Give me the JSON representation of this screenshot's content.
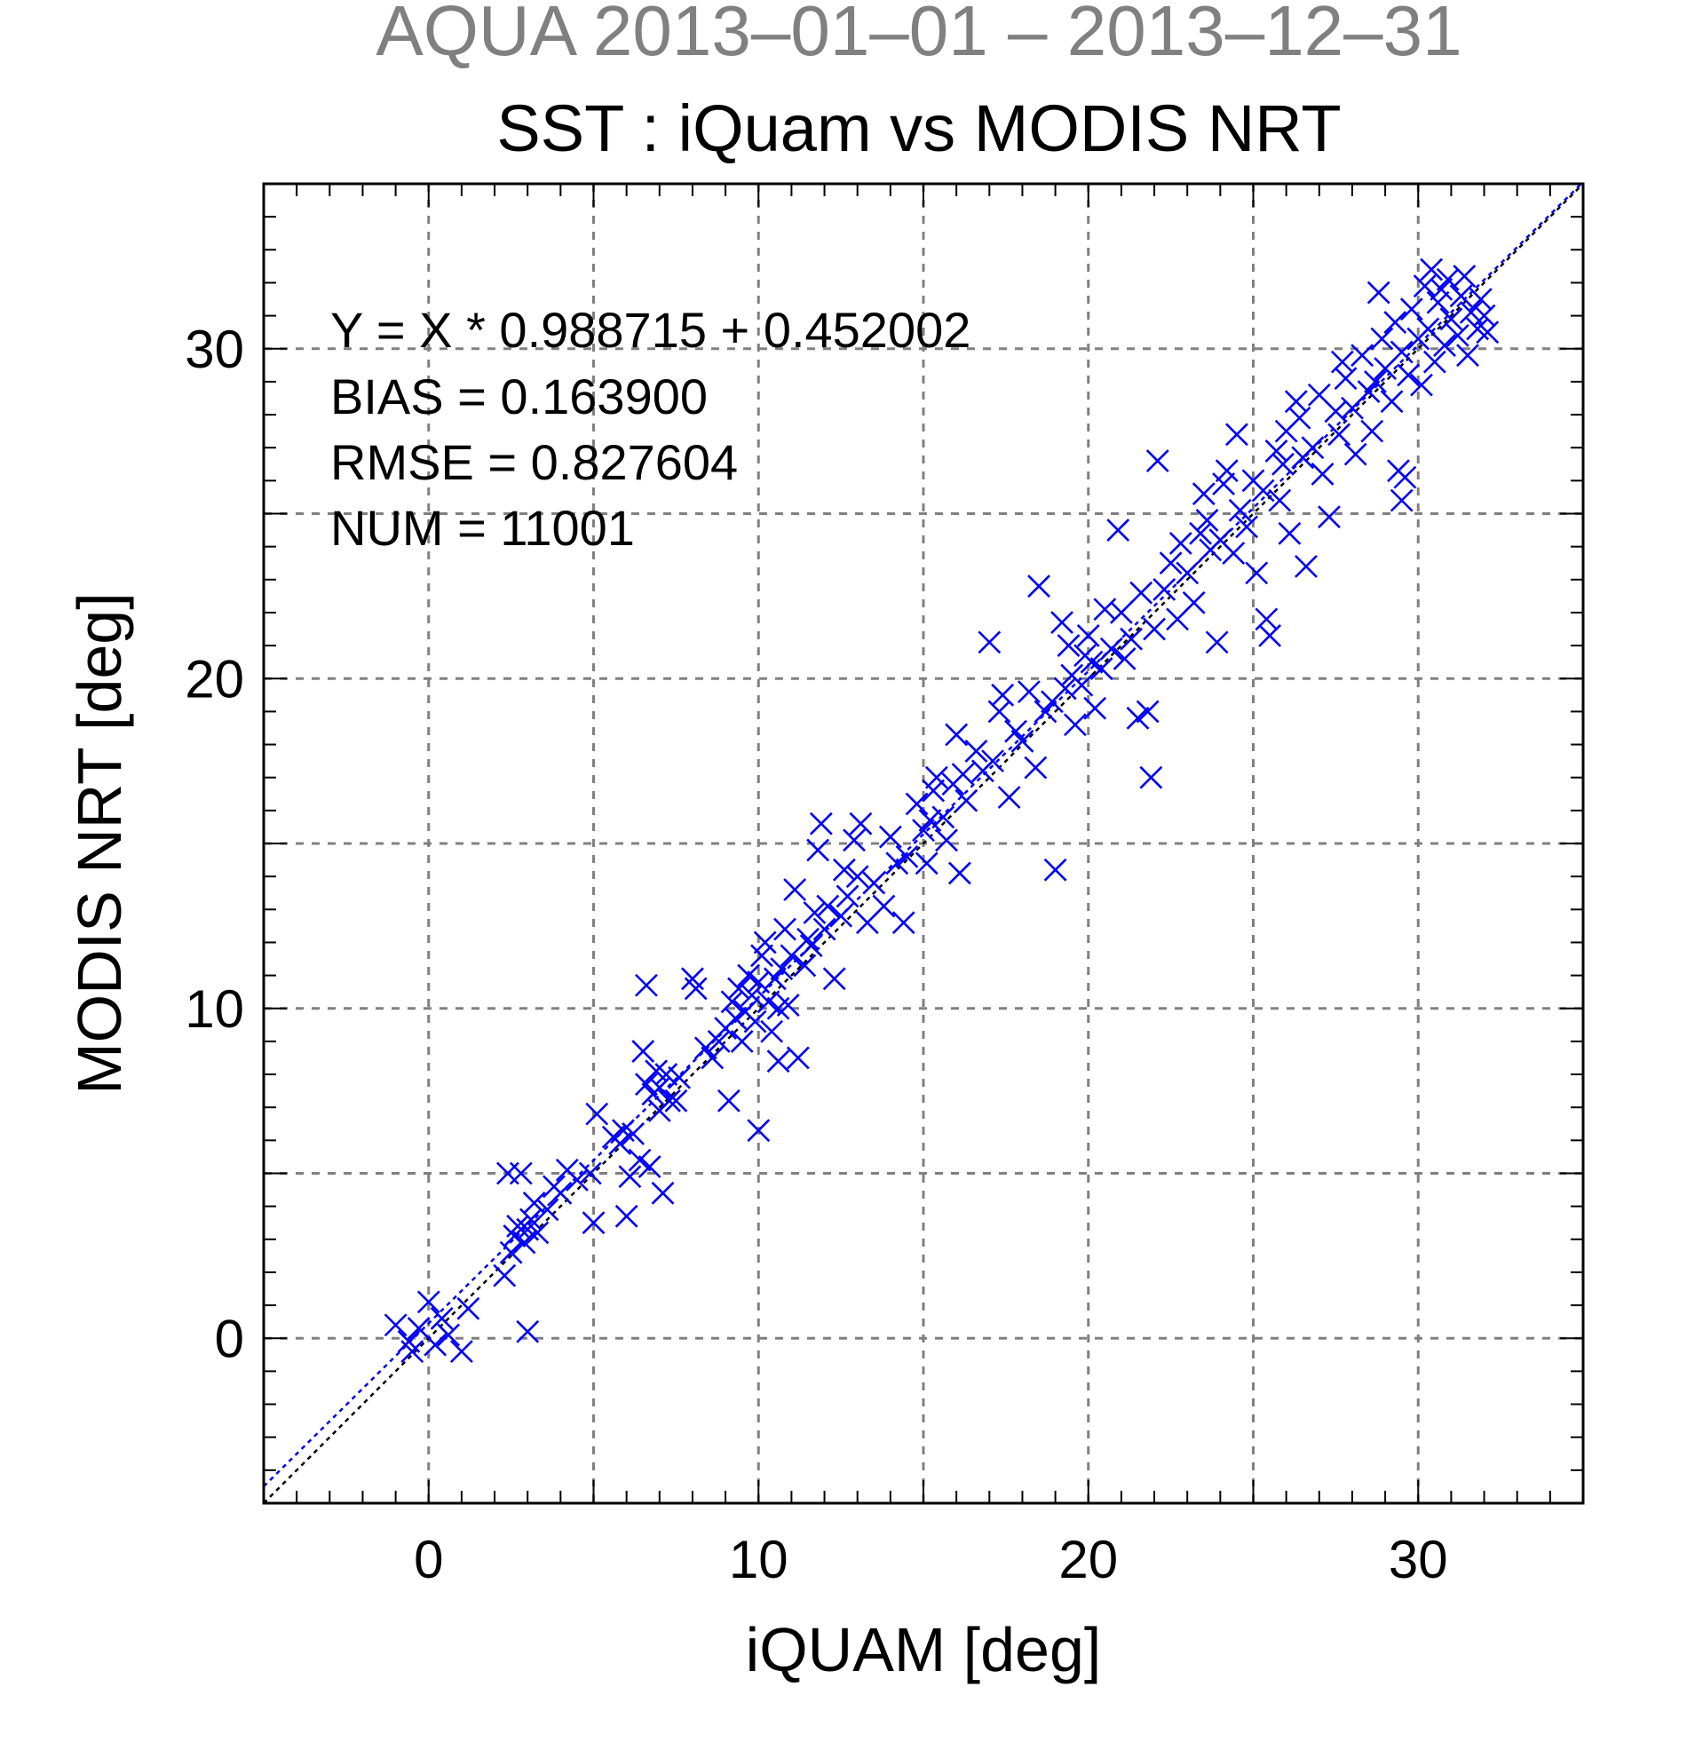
{
  "chart_data": {
    "type": "scatter",
    "title": "AQUA  2013–01–01 – 2013–12–31",
    "subtitle": "SST : iQuam vs MODIS NRT",
    "xlabel": "iQUAM [deg]",
    "ylabel": "MODIS NRT [deg]",
    "xlim": [
      -5,
      35
    ],
    "ylim": [
      -5,
      35
    ],
    "xticks": [
      0,
      10,
      20,
      30
    ],
    "yticks": [
      0,
      10,
      20,
      30
    ],
    "grid": true,
    "grid_step": 5,
    "marker": "x",
    "colors": {
      "points": "#0000ff",
      "fit_line": "#0000ff",
      "identity_line": "#000000",
      "title": "#808080",
      "grid": "#808080"
    },
    "fit": {
      "slope": 0.988715,
      "intercept": 0.452002
    },
    "stats": [
      "Y = X * 0.988715 + 0.452002",
      "BIAS = 0.163900",
      "RMSE = 0.827604",
      "NUM = 11001"
    ],
    "series": [
      {
        "points": [
          [
            -1.0,
            0.4
          ],
          [
            -0.6,
            -0.1
          ],
          [
            -0.3,
            0.3
          ],
          [
            0.0,
            1.1
          ],
          [
            0.2,
            -0.2
          ],
          [
            0.6,
            0.1
          ],
          [
            1.2,
            0.9
          ],
          [
            1.0,
            -0.4
          ],
          [
            -0.5,
            -0.4
          ],
          [
            0.4,
            0.6
          ],
          [
            2.4,
            5.0
          ],
          [
            2.8,
            5.0
          ],
          [
            2.6,
            3.1
          ],
          [
            3.0,
            3.3
          ],
          [
            2.5,
            2.6
          ],
          [
            3.2,
            4.1
          ],
          [
            2.3,
            1.9
          ],
          [
            2.9,
            2.9
          ],
          [
            3.1,
            3.6
          ],
          [
            3.3,
            3.2
          ],
          [
            2.7,
            3.4
          ],
          [
            3.0,
            0.2
          ],
          [
            3.6,
            3.9
          ],
          [
            3.8,
            4.6
          ],
          [
            4.2,
            5.1
          ],
          [
            4.5,
            4.8
          ],
          [
            4.9,
            5.0
          ],
          [
            4.0,
            4.4
          ],
          [
            5.0,
            3.5
          ],
          [
            5.1,
            6.8
          ],
          [
            5.6,
            6.1
          ],
          [
            5.9,
            6.3
          ],
          [
            6.1,
            4.9
          ],
          [
            5.8,
            5.9
          ],
          [
            6.2,
            6.2
          ],
          [
            6.4,
            5.4
          ],
          [
            6.6,
            7.7
          ],
          [
            6.8,
            7.4
          ],
          [
            7.0,
            7.6
          ],
          [
            6.9,
            8.1
          ],
          [
            7.2,
            8.0
          ],
          [
            6.7,
            5.2
          ],
          [
            7.1,
            4.4
          ],
          [
            7.0,
            6.9
          ],
          [
            7.3,
            7.2
          ],
          [
            6.5,
            8.7
          ],
          [
            6.6,
            10.7
          ],
          [
            6.0,
            3.7
          ],
          [
            7.6,
            7.9
          ],
          [
            7.5,
            7.2
          ],
          [
            8.1,
            10.6
          ],
          [
            8.0,
            10.9
          ],
          [
            8.6,
            8.5
          ],
          [
            8.8,
            9.0
          ],
          [
            9.0,
            9.4
          ],
          [
            9.2,
            10.2
          ],
          [
            9.1,
            7.2
          ],
          [
            9.4,
            10.6
          ],
          [
            9.5,
            9.0
          ],
          [
            9.6,
            9.9
          ],
          [
            9.7,
            11.0
          ],
          [
            9.8,
            10.4
          ],
          [
            9.9,
            9.6
          ],
          [
            10.0,
            10.8
          ],
          [
            10.1,
            11.6
          ],
          [
            10.0,
            6.3
          ],
          [
            10.3,
            10.2
          ],
          [
            10.4,
            9.3
          ],
          [
            10.2,
            12.0
          ],
          [
            10.5,
            10.9
          ],
          [
            10.6,
            8.4
          ],
          [
            10.7,
            11.2
          ],
          [
            10.8,
            12.4
          ],
          [
            11.0,
            11.6
          ],
          [
            11.1,
            13.6
          ],
          [
            10.9,
            10.1
          ],
          [
            11.2,
            8.5
          ],
          [
            11.4,
            11.3
          ],
          [
            11.5,
            12.1
          ],
          [
            11.6,
            11.9
          ],
          [
            11.8,
            14.8
          ],
          [
            11.9,
            15.6
          ],
          [
            12.0,
            12.4
          ],
          [
            12.1,
            13.1
          ],
          [
            12.3,
            10.9
          ],
          [
            12.5,
            12.8
          ],
          [
            12.7,
            13.4
          ],
          [
            12.9,
            15.1
          ],
          [
            13.0,
            14.0
          ],
          [
            13.1,
            15.6
          ],
          [
            13.3,
            12.6
          ],
          [
            13.5,
            13.8
          ],
          [
            13.8,
            13.1
          ],
          [
            14.0,
            15.2
          ],
          [
            14.2,
            14.4
          ],
          [
            14.4,
            12.6
          ],
          [
            14.5,
            14.6
          ],
          [
            14.8,
            16.2
          ],
          [
            15.0,
            15.4
          ],
          [
            15.1,
            14.4
          ],
          [
            15.3,
            16.6
          ],
          [
            15.4,
            17.0
          ],
          [
            15.6,
            15.8
          ],
          [
            15.7,
            15.1
          ],
          [
            15.9,
            16.8
          ],
          [
            16.0,
            18.3
          ],
          [
            16.1,
            14.1
          ],
          [
            16.3,
            16.3
          ],
          [
            16.6,
            17.8
          ],
          [
            16.8,
            17.2
          ],
          [
            17.0,
            21.1
          ],
          [
            17.1,
            17.5
          ],
          [
            17.3,
            19.0
          ],
          [
            17.4,
            19.5
          ],
          [
            17.6,
            16.4
          ],
          [
            17.8,
            18.4
          ],
          [
            18.0,
            18.1
          ],
          [
            18.2,
            19.6
          ],
          [
            18.4,
            17.3
          ],
          [
            18.5,
            22.8
          ],
          [
            18.7,
            19.0
          ],
          [
            18.9,
            19.3
          ],
          [
            19.0,
            14.2
          ],
          [
            19.2,
            21.7
          ],
          [
            19.3,
            19.7
          ],
          [
            19.5,
            20.1
          ],
          [
            19.6,
            18.6
          ],
          [
            19.8,
            19.8
          ],
          [
            20.0,
            21.3
          ],
          [
            20.1,
            20.5
          ],
          [
            20.2,
            19.1
          ],
          [
            20.4,
            20.3
          ],
          [
            20.5,
            22.1
          ],
          [
            20.7,
            20.9
          ],
          [
            20.9,
            24.5
          ],
          [
            21.0,
            22.0
          ],
          [
            21.1,
            20.6
          ],
          [
            21.3,
            21.2
          ],
          [
            21.5,
            18.8
          ],
          [
            21.6,
            22.6
          ],
          [
            21.8,
            19.0
          ],
          [
            21.9,
            17.0
          ],
          [
            22.0,
            21.5
          ],
          [
            22.1,
            26.6
          ],
          [
            22.3,
            22.7
          ],
          [
            22.5,
            23.5
          ],
          [
            22.7,
            21.8
          ],
          [
            22.8,
            24.1
          ],
          [
            23.0,
            23.2
          ],
          [
            23.2,
            22.3
          ],
          [
            23.4,
            24.4
          ],
          [
            23.5,
            25.6
          ],
          [
            23.7,
            23.9
          ],
          [
            23.9,
            21.1
          ],
          [
            24.0,
            24.2
          ],
          [
            24.2,
            26.3
          ],
          [
            24.4,
            23.8
          ],
          [
            24.5,
            27.4
          ],
          [
            24.6,
            25.1
          ],
          [
            24.8,
            24.6
          ],
          [
            25.0,
            26.0
          ],
          [
            25.1,
            23.2
          ],
          [
            25.3,
            25.7
          ],
          [
            25.4,
            21.8
          ],
          [
            25.5,
            21.3
          ],
          [
            25.7,
            26.9
          ],
          [
            25.8,
            25.4
          ],
          [
            26.0,
            27.5
          ],
          [
            26.1,
            24.4
          ],
          [
            26.3,
            28.4
          ],
          [
            26.5,
            26.7
          ],
          [
            26.6,
            23.4
          ],
          [
            26.8,
            27.0
          ],
          [
            27.0,
            28.6
          ],
          [
            27.1,
            26.2
          ],
          [
            27.3,
            24.9
          ],
          [
            27.5,
            28.1
          ],
          [
            27.6,
            27.4
          ],
          [
            27.8,
            29.1
          ],
          [
            28.0,
            28.2
          ],
          [
            28.1,
            26.8
          ],
          [
            28.3,
            29.8
          ],
          [
            28.5,
            28.7
          ],
          [
            28.6,
            27.5
          ],
          [
            28.8,
            31.7
          ],
          [
            28.9,
            30.3
          ],
          [
            29.0,
            29.4
          ],
          [
            29.2,
            28.4
          ],
          [
            29.3,
            30.8
          ],
          [
            29.5,
            29.9
          ],
          [
            29.6,
            26.1
          ],
          [
            29.7,
            29.2
          ],
          [
            29.8,
            31.2
          ],
          [
            30.0,
            30.3
          ],
          [
            30.1,
            28.9
          ],
          [
            30.2,
            31.9
          ],
          [
            30.3,
            30.6
          ],
          [
            30.5,
            29.6
          ],
          [
            30.6,
            31.4
          ],
          [
            30.8,
            30.1
          ],
          [
            30.9,
            32.1
          ],
          [
            31.0,
            30.9
          ],
          [
            31.2,
            30.4
          ],
          [
            31.3,
            31.6
          ],
          [
            31.5,
            29.8
          ],
          [
            31.6,
            31.1
          ],
          [
            31.8,
            30.6
          ],
          [
            31.9,
            31.5
          ],
          [
            32.0,
            31.0
          ],
          [
            32.1,
            30.5
          ],
          [
            29.5,
            25.4
          ],
          [
            29.4,
            26.3
          ],
          [
            26.4,
            27.9
          ],
          [
            25.9,
            26.5
          ],
          [
            24.1,
            25.9
          ],
          [
            23.6,
            24.8
          ],
          [
            19.9,
            20.7
          ],
          [
            19.4,
            21.0
          ],
          [
            16.2,
            17.1
          ],
          [
            15.2,
            15.7
          ],
          [
            12.6,
            14.2
          ],
          [
            11.7,
            12.9
          ],
          [
            10.6,
            10.0
          ],
          [
            9.3,
            9.7
          ],
          [
            8.4,
            8.8
          ],
          [
            27.7,
            29.6
          ],
          [
            28.7,
            29.0
          ],
          [
            30.7,
            31.8
          ],
          [
            31.4,
            32.2
          ],
          [
            30.4,
            32.4
          ]
        ]
      }
    ]
  }
}
